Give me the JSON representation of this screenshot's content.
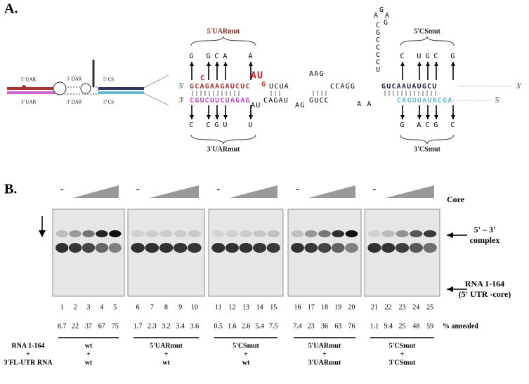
{
  "panel_a": {
    "label": "A.",
    "schematic": {
      "top": [
        "5' UAR",
        "5' DAR",
        "5' CS"
      ],
      "bottom": [
        "3' UAR",
        "3' DAR",
        "3' CS"
      ]
    },
    "strand_top": {
      "end5": "5'",
      "uar": "GCAGAAGAUCUC",
      "bulge": "C",
      "au": "AU",
      "g": "G",
      "mid1": "UCUA",
      "loop": "AAG",
      "mid2": "CCAGG",
      "cs": "GUCAAUAUGCU",
      "end3": "3'"
    },
    "strand_bottom": {
      "end3": "3'",
      "uar": "CGUCUUCUAGAG",
      "mid1": "AU",
      "mid2": "CAGAU",
      "mid3": "AG",
      "mid4": "GUCC",
      "mid5": "A A",
      "cs": "CAGUUAUACGA",
      "end5": "5'"
    },
    "hairpin": [
      "A",
      "G",
      "A",
      "G",
      "C",
      "G",
      "C",
      "C",
      "C",
      "C",
      "U"
    ],
    "mutants": {
      "uar5": {
        "name": "5'UARmut",
        "bases": [
          "G",
          "G",
          "C",
          "A",
          "A"
        ]
      },
      "uar3": {
        "name": "3'UARmut",
        "bases": [
          "C",
          "C",
          "G",
          "U",
          "U"
        ]
      },
      "cs5": {
        "name": "5'CSmut",
        "bases": [
          "C",
          "U",
          "G",
          "C",
          "G"
        ]
      },
      "cs3": {
        "name": "3'CSmut",
        "bases": [
          "G",
          "A",
          "C",
          "G",
          "C"
        ]
      }
    }
  },
  "panel_b": {
    "label": "B.",
    "core_label": "Core",
    "minus": "-",
    "upper_band": [
      "5' – 3'",
      "complex"
    ],
    "lower_band": [
      "RNA 1-164",
      "(5' UTR -core)"
    ],
    "annealed_label": "% annealed",
    "row_labels": [
      "RNA 1-164",
      "+",
      "3'FL-UTR RNA"
    ],
    "groups": [
      {
        "lanes": [
          1,
          2,
          3,
          4,
          5
        ],
        "annealed": [
          8.7,
          22,
          37,
          67,
          75
        ],
        "rna": "wt",
        "plus": "+",
        "utr": "wt"
      },
      {
        "lanes": [
          6,
          7,
          8,
          9,
          10
        ],
        "annealed": [
          1.7,
          2.3,
          3.2,
          3.4,
          3.6
        ],
        "rna": "5'UARmut",
        "plus": "+",
        "utr": "wt"
      },
      {
        "lanes": [
          11,
          12,
          13,
          14,
          15
        ],
        "annealed": [
          0.5,
          1.6,
          2.6,
          5.4,
          7.5
        ],
        "rna": "5'CSmut",
        "plus": "+",
        "utr": "wt"
      },
      {
        "lanes": [
          16,
          17,
          18,
          19,
          20
        ],
        "annealed": [
          7.4,
          23,
          36,
          63,
          76
        ],
        "rna": "5'UARmut",
        "plus": "+",
        "utr": "3'UARmut"
      },
      {
        "lanes": [
          21,
          22,
          23,
          24,
          25
        ],
        "annealed": [
          1.1,
          9.4,
          25,
          48,
          59
        ],
        "rna": "5'CSmut",
        "plus": "+",
        "utr": "3'CSmut"
      }
    ]
  }
}
